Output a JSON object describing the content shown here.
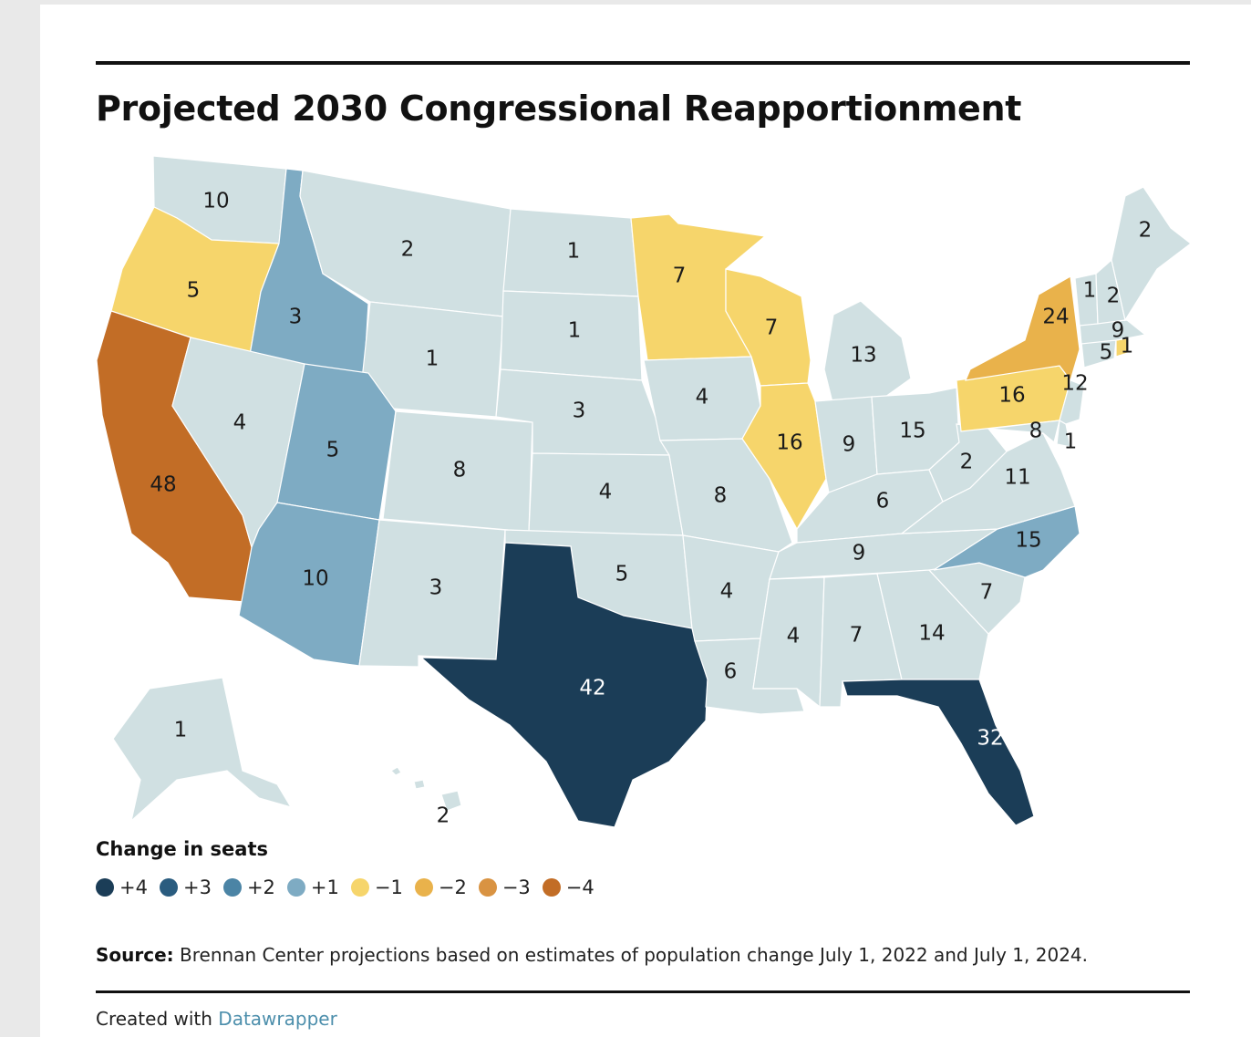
{
  "title": "Projected 2030 Congressional Reapportionment",
  "legend": {
    "title": "Change in seats",
    "items": [
      {
        "label": "+4",
        "color": "#1b3d57"
      },
      {
        "label": "+3",
        "color": "#2a5c7f"
      },
      {
        "label": "+2",
        "color": "#4b84a5"
      },
      {
        "label": "+1",
        "color": "#7eabc3"
      },
      {
        "label": "−1",
        "color": "#f6d56b"
      },
      {
        "label": "−2",
        "color": "#e9b24b"
      },
      {
        "label": "−3",
        "color": "#d99342"
      },
      {
        "label": "−4",
        "color": "#c26d26"
      }
    ]
  },
  "colors": {
    "no_change": "#d0e0e2",
    "plus4": "#1b3d57",
    "plus3": "#2a5c7f",
    "plus2": "#4b84a5",
    "plus1": "#7eabc3",
    "minus1": "#f6d56b",
    "minus2": "#e9b24b",
    "minus3": "#d99342",
    "minus4": "#c26d26"
  },
  "states": [
    {
      "name": "WA",
      "seats": "10",
      "change": 0
    },
    {
      "name": "OR",
      "seats": "5",
      "change": -1
    },
    {
      "name": "CA",
      "seats": "48",
      "change": -4
    },
    {
      "name": "ID",
      "seats": "3",
      "change": 1
    },
    {
      "name": "NV",
      "seats": "4",
      "change": 0
    },
    {
      "name": "MT",
      "seats": "2",
      "change": 0
    },
    {
      "name": "WY",
      "seats": "1",
      "change": 0
    },
    {
      "name": "UT",
      "seats": "5",
      "change": 1
    },
    {
      "name": "AZ",
      "seats": "10",
      "change": 1
    },
    {
      "name": "CO",
      "seats": "8",
      "change": 0
    },
    {
      "name": "NM",
      "seats": "3",
      "change": 0
    },
    {
      "name": "ND",
      "seats": "1",
      "change": 0
    },
    {
      "name": "SD",
      "seats": "1",
      "change": 0
    },
    {
      "name": "NE",
      "seats": "3",
      "change": 0
    },
    {
      "name": "KS",
      "seats": "4",
      "change": 0
    },
    {
      "name": "OK",
      "seats": "5",
      "change": 0
    },
    {
      "name": "TX",
      "seats": "42",
      "change": 4
    },
    {
      "name": "MN",
      "seats": "7",
      "change": -1
    },
    {
      "name": "IA",
      "seats": "4",
      "change": 0
    },
    {
      "name": "MO",
      "seats": "8",
      "change": 0
    },
    {
      "name": "AR",
      "seats": "4",
      "change": 0
    },
    {
      "name": "LA",
      "seats": "6",
      "change": 0
    },
    {
      "name": "WI",
      "seats": "7",
      "change": -1
    },
    {
      "name": "IL",
      "seats": "16",
      "change": -1
    },
    {
      "name": "MI",
      "seats": "13",
      "change": 0
    },
    {
      "name": "IN",
      "seats": "9",
      "change": 0
    },
    {
      "name": "OH",
      "seats": "15",
      "change": 0
    },
    {
      "name": "KY",
      "seats": "6",
      "change": 0
    },
    {
      "name": "TN",
      "seats": "9",
      "change": 0
    },
    {
      "name": "MS",
      "seats": "4",
      "change": 0
    },
    {
      "name": "AL",
      "seats": "7",
      "change": 0
    },
    {
      "name": "GA",
      "seats": "14",
      "change": 0
    },
    {
      "name": "FL",
      "seats": "32",
      "change": 4
    },
    {
      "name": "SC",
      "seats": "7",
      "change": 0
    },
    {
      "name": "NC",
      "seats": "15",
      "change": 1
    },
    {
      "name": "VA",
      "seats": "11",
      "change": 0
    },
    {
      "name": "WV",
      "seats": "2",
      "change": 0
    },
    {
      "name": "PA",
      "seats": "16",
      "change": -1
    },
    {
      "name": "NY",
      "seats": "24",
      "change": -2
    },
    {
      "name": "MD",
      "seats": "8",
      "change": 0
    },
    {
      "name": "DE",
      "seats": "1",
      "change": 0
    },
    {
      "name": "NJ",
      "seats": "12",
      "change": 0
    },
    {
      "name": "CT",
      "seats": "5",
      "change": 0
    },
    {
      "name": "RI",
      "seats": "1",
      "change": -1
    },
    {
      "name": "MA",
      "seats": "9",
      "change": 0
    },
    {
      "name": "VT",
      "seats": "1",
      "change": 0
    },
    {
      "name": "NH",
      "seats": "2",
      "change": 0
    },
    {
      "name": "ME",
      "seats": "2",
      "change": 0
    },
    {
      "name": "AK",
      "seats": "1",
      "change": 0
    },
    {
      "name": "HI",
      "seats": "2",
      "change": 0
    }
  ],
  "source": {
    "label": "Source:",
    "text": " Brennan Center projections based on estimates of population change July 1, 2022 and July 1, 2024."
  },
  "credit": {
    "text": "Created with ",
    "link": "Datawrapper"
  }
}
